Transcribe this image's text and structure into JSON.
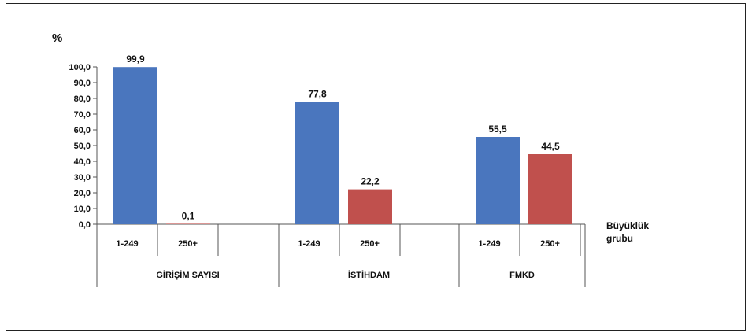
{
  "chart_data": {
    "type": "bar",
    "y_unit_label": "%",
    "ylim": [
      0,
      100
    ],
    "y_ticks": [
      "0,0",
      "10,0",
      "20,0",
      "30,0",
      "40,0",
      "50,0",
      "60,0",
      "70,0",
      "80,0",
      "90,0",
      "100,0"
    ],
    "legend_side_label": [
      "Büyüklük",
      "grubu"
    ],
    "groups": [
      {
        "name": "GİRİŞİM SAYISI",
        "bars": [
          {
            "category": "1-249",
            "value": 99.9,
            "label": "99,9",
            "color": "#4a76be"
          },
          {
            "category": "250+",
            "value": 0.1,
            "label": "0,1",
            "color": "#c0504d"
          }
        ]
      },
      {
        "name": "İSTİHDAM",
        "bars": [
          {
            "category": "1-249",
            "value": 77.8,
            "label": "77,8",
            "color": "#4a76be"
          },
          {
            "category": "250+",
            "value": 22.2,
            "label": "22,2",
            "color": "#c0504d"
          }
        ]
      },
      {
        "name": "FMKD",
        "bars": [
          {
            "category": "1-249",
            "value": 55.5,
            "label": "55,5",
            "color": "#4a76be"
          },
          {
            "category": "250+",
            "value": 44.5,
            "label": "44,5",
            "color": "#c0504d"
          }
        ]
      }
    ]
  }
}
